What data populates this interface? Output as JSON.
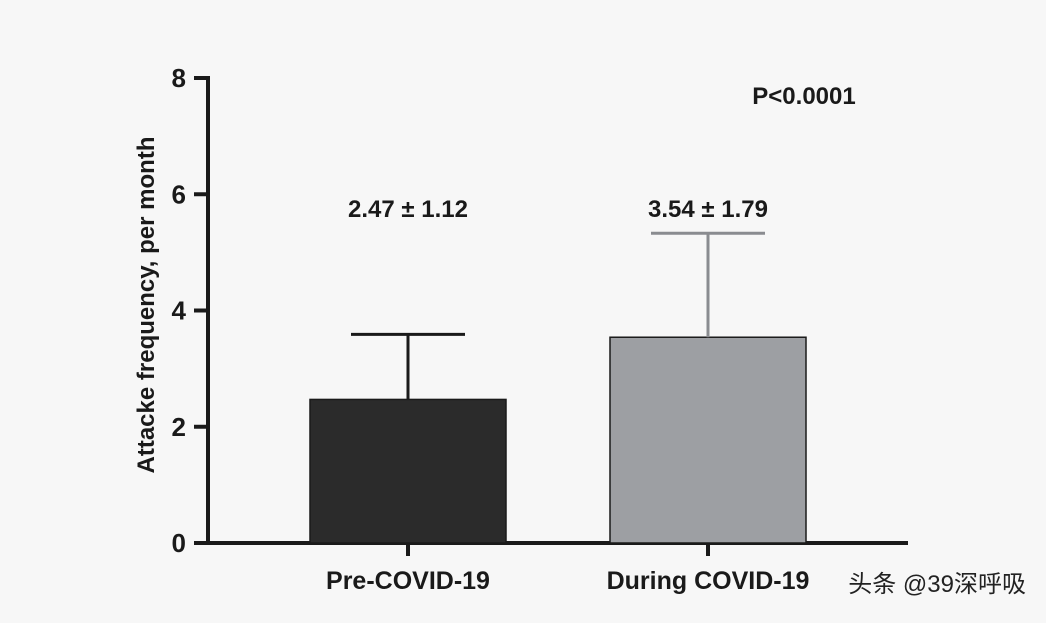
{
  "chart_data": {
    "type": "bar",
    "ylabel": "Attacke frequency, per month",
    "xlabel": "",
    "ylim": [
      0,
      8
    ],
    "yticks": [
      0,
      2,
      4,
      6,
      8
    ],
    "categories": [
      "Pre-COVID-19",
      "During COVID-19"
    ],
    "values": [
      2.47,
      3.54
    ],
    "errors": [
      1.12,
      1.79
    ],
    "value_labels": [
      "2.47 ± 1.12",
      "3.54 ± 1.79"
    ],
    "bar_colors": [
      "#2b2b2b",
      "#9d9fa3"
    ],
    "annotation": "P<0.0001"
  },
  "watermark": "头条 @39深呼吸"
}
